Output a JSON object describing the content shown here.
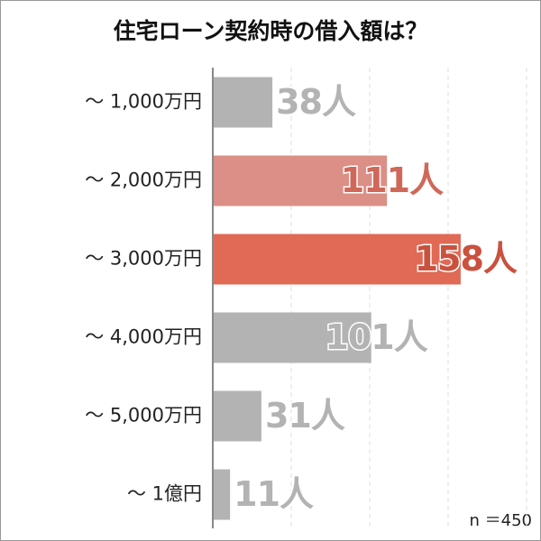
{
  "chart_data": {
    "type": "barh",
    "title": "住宅ローン契約時の借入額は？",
    "categories": [
      "～ 1,000万円",
      "～ 2,000万円",
      "～ 3,000万円",
      "～ 4,000万円",
      "～ 5,000万円",
      "～ 1億円"
    ],
    "values": [
      38,
      111,
      158,
      101,
      31,
      11
    ],
    "value_labels": [
      "38人",
      "111人",
      "158人",
      "101人",
      "31人",
      "11人"
    ],
    "colors": [
      "#b3b3b3",
      "#dc8f86",
      "#e06a55",
      "#b3b3b3",
      "#b3b3b3",
      "#b3b3b3"
    ],
    "label_colors": [
      "#b3b3b3",
      "#d0685a",
      "#c9513e",
      "#b3b3b3",
      "#b3b3b3",
      "#b3b3b3"
    ],
    "xlim": [
      0,
      200
    ],
    "xticks": [
      0,
      50,
      100,
      150,
      200
    ],
    "grid": true,
    "annotation": "n ＝450"
  }
}
